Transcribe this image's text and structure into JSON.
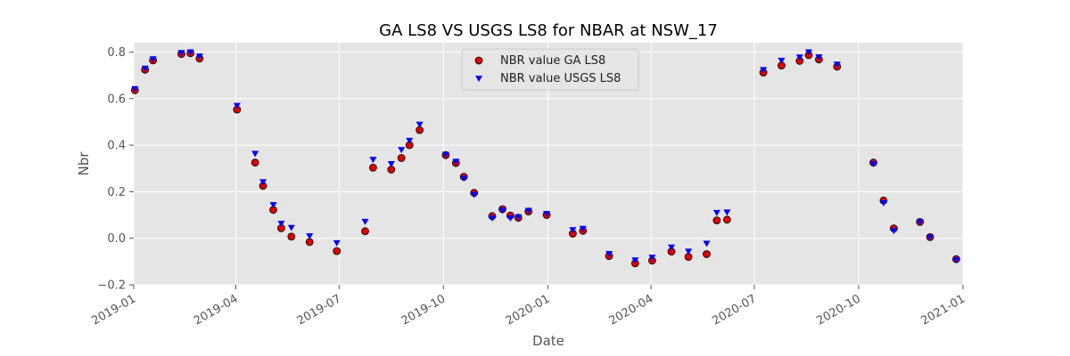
{
  "chart_data": {
    "type": "scatter",
    "title": "GA LS8 VS USGS LS8 for NBAR at NSW_17",
    "xlabel": "Date",
    "ylabel": "Nbr",
    "xlim": [
      "2019-01-01",
      "2021-01-01"
    ],
    "ylim": [
      -0.2,
      0.84
    ],
    "x_ticks": [
      "2019-01",
      "2019-04",
      "2019-07",
      "2019-10",
      "2020-01",
      "2020-04",
      "2020-07",
      "2020-10",
      "2021-01"
    ],
    "y_ticks": [
      -0.2,
      0.0,
      0.2,
      0.4,
      0.6,
      0.8
    ],
    "y_tick_labels": [
      "−0.2",
      "0.0",
      "0.2",
      "0.4",
      "0.6",
      "0.8"
    ],
    "grid": true,
    "legend_position": "upper-center",
    "colors": {
      "background": "#e5e5e5",
      "grid": "#ffffff",
      "ga_fill": "#dd0000",
      "ga_edge": "#000000",
      "usgs_fill": "#0000ff"
    },
    "series": [
      {
        "name": "NBR value GA LS8",
        "marker": "circle",
        "points": [
          [
            "2019-01-02",
            0.636
          ],
          [
            "2019-01-11",
            0.724
          ],
          [
            "2019-01-18",
            0.764
          ],
          [
            "2019-02-12",
            0.792
          ],
          [
            "2019-02-20",
            0.795
          ],
          [
            "2019-02-28",
            0.772
          ],
          [
            "2019-04-02",
            0.553
          ],
          [
            "2019-04-18",
            0.325
          ],
          [
            "2019-04-25",
            0.225
          ],
          [
            "2019-05-04",
            0.122
          ],
          [
            "2019-05-11",
            0.043
          ],
          [
            "2019-05-20",
            0.007
          ],
          [
            "2019-06-05",
            -0.016
          ],
          [
            "2019-06-29",
            -0.055
          ],
          [
            "2019-07-24",
            0.03
          ],
          [
            "2019-07-31",
            0.303
          ],
          [
            "2019-08-16",
            0.295
          ],
          [
            "2019-08-25",
            0.345
          ],
          [
            "2019-09-01",
            0.4
          ],
          [
            "2019-09-10",
            0.465
          ],
          [
            "2019-10-03",
            0.357
          ],
          [
            "2019-10-12",
            0.323
          ],
          [
            "2019-10-19",
            0.264
          ],
          [
            "2019-10-28",
            0.195
          ],
          [
            "2019-11-13",
            0.095
          ],
          [
            "2019-11-22",
            0.125
          ],
          [
            "2019-11-29",
            0.098
          ],
          [
            "2019-12-06",
            0.088
          ],
          [
            "2019-12-15",
            0.115
          ],
          [
            "2019-12-31",
            0.1
          ],
          [
            "2020-01-23",
            0.02
          ],
          [
            "2020-02-01",
            0.032
          ],
          [
            "2020-02-24",
            -0.076
          ],
          [
            "2020-03-18",
            -0.108
          ],
          [
            "2020-04-02",
            -0.096
          ],
          [
            "2020-04-19",
            -0.057
          ],
          [
            "2020-05-04",
            -0.08
          ],
          [
            "2020-05-20",
            -0.068
          ],
          [
            "2020-05-29",
            0.077
          ],
          [
            "2020-06-07",
            0.08
          ],
          [
            "2020-07-09",
            0.712
          ],
          [
            "2020-07-25",
            0.742
          ],
          [
            "2020-08-10",
            0.762
          ],
          [
            "2020-08-18",
            0.787
          ],
          [
            "2020-08-27",
            0.768
          ],
          [
            "2020-09-12",
            0.737
          ],
          [
            "2020-10-14",
            0.325
          ],
          [
            "2020-10-23",
            0.162
          ],
          [
            "2020-11-01",
            0.042
          ],
          [
            "2020-11-24",
            0.07
          ],
          [
            "2020-12-03",
            0.005
          ],
          [
            "2020-12-26",
            -0.09
          ]
        ]
      },
      {
        "name": "NBR value USGS LS8",
        "marker": "triangle-down",
        "points": [
          [
            "2019-01-02",
            0.64
          ],
          [
            "2019-01-11",
            0.728
          ],
          [
            "2019-01-18",
            0.768
          ],
          [
            "2019-02-12",
            0.795
          ],
          [
            "2019-02-20",
            0.798
          ],
          [
            "2019-02-28",
            0.78
          ],
          [
            "2019-04-02",
            0.568
          ],
          [
            "2019-04-18",
            0.362
          ],
          [
            "2019-04-25",
            0.24
          ],
          [
            "2019-05-04",
            0.142
          ],
          [
            "2019-05-11",
            0.062
          ],
          [
            "2019-05-20",
            0.044
          ],
          [
            "2019-06-05",
            0.008
          ],
          [
            "2019-06-29",
            -0.022
          ],
          [
            "2019-07-24",
            0.07
          ],
          [
            "2019-07-31",
            0.336
          ],
          [
            "2019-08-16",
            0.318
          ],
          [
            "2019-08-25",
            0.378
          ],
          [
            "2019-09-01",
            0.418
          ],
          [
            "2019-09-10",
            0.487
          ],
          [
            "2019-10-03",
            0.358
          ],
          [
            "2019-10-12",
            0.328
          ],
          [
            "2019-10-19",
            0.256
          ],
          [
            "2019-10-28",
            0.186
          ],
          [
            "2019-11-13",
            0.085
          ],
          [
            "2019-11-22",
            0.118
          ],
          [
            "2019-11-29",
            0.085
          ],
          [
            "2019-12-06",
            0.09
          ],
          [
            "2019-12-15",
            0.117
          ],
          [
            "2019-12-31",
            0.104
          ],
          [
            "2020-01-23",
            0.034
          ],
          [
            "2020-02-01",
            0.04
          ],
          [
            "2020-02-24",
            -0.068
          ],
          [
            "2020-03-18",
            -0.096
          ],
          [
            "2020-04-02",
            -0.084
          ],
          [
            "2020-04-19",
            -0.04
          ],
          [
            "2020-05-04",
            -0.058
          ],
          [
            "2020-05-20",
            -0.024
          ],
          [
            "2020-05-29",
            0.108
          ],
          [
            "2020-06-07",
            0.11
          ],
          [
            "2020-07-09",
            0.722
          ],
          [
            "2020-07-25",
            0.762
          ],
          [
            "2020-08-10",
            0.776
          ],
          [
            "2020-08-18",
            0.798
          ],
          [
            "2020-08-27",
            0.777
          ],
          [
            "2020-09-12",
            0.745
          ],
          [
            "2020-10-14",
            0.318
          ],
          [
            "2020-10-23",
            0.15
          ],
          [
            "2020-11-01",
            0.03
          ],
          [
            "2020-11-24",
            0.068
          ],
          [
            "2020-12-03",
            0.002
          ],
          [
            "2020-12-26",
            -0.095
          ]
        ]
      }
    ]
  }
}
